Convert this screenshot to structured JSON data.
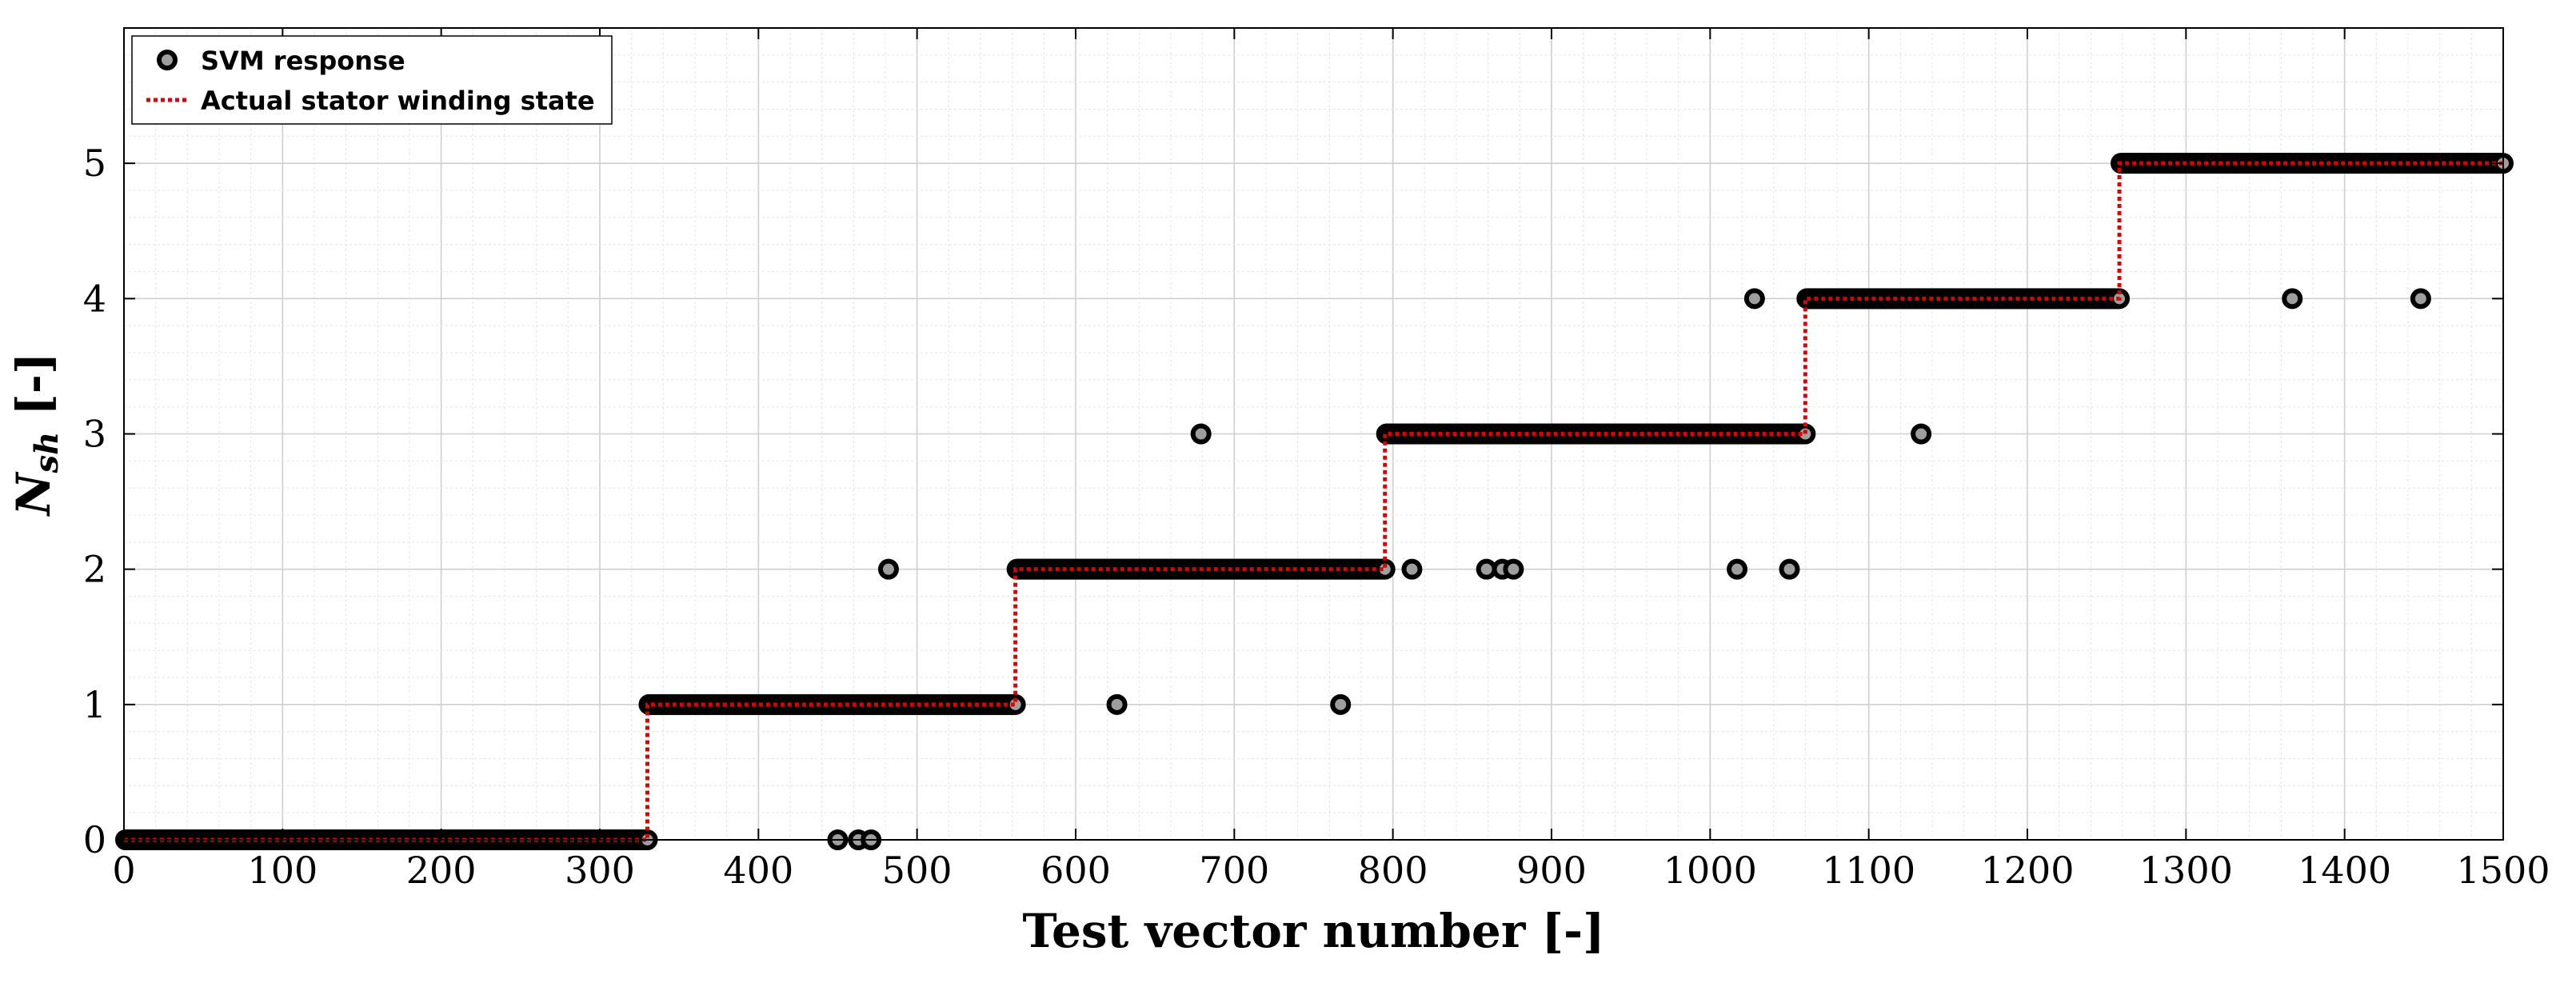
{
  "chart_data": {
    "type": "scatter",
    "title": "",
    "xlabel": "Test vector number [-]",
    "ylabel_main": "N",
    "ylabel_sub": "sh",
    "ylabel_suffix": " [-]",
    "xlim": [
      0,
      1500
    ],
    "ylim": [
      0,
      6
    ],
    "xticks": [
      0,
      100,
      200,
      300,
      400,
      500,
      600,
      700,
      800,
      900,
      1000,
      1100,
      1200,
      1300,
      1400,
      1500
    ],
    "yticks": [
      0,
      1,
      2,
      3,
      4,
      5
    ],
    "grid": "major and minor",
    "legend_position": "top-left",
    "colors": {
      "marker_fill": "#9e9e9e",
      "marker_edge": "#000000",
      "step_line": "#e00000",
      "grid": "#d9d9d9"
    },
    "series": [
      {
        "name": "SVM response",
        "kind": "markers",
        "segments": [
          {
            "x_start": 1,
            "x_end": 330,
            "y": 0
          },
          {
            "x_start": 331,
            "x_end": 562,
            "y": 1
          },
          {
            "x_start": 563,
            "x_end": 795,
            "y": 2
          },
          {
            "x_start": 796,
            "x_end": 1060,
            "y": 3
          },
          {
            "x_start": 1061,
            "x_end": 1258,
            "y": 4
          },
          {
            "x_start": 1259,
            "x_end": 1500,
            "y": 5
          }
        ],
        "outliers": [
          {
            "x": 450,
            "y": 0
          },
          {
            "x": 463,
            "y": 0
          },
          {
            "x": 471,
            "y": 0
          },
          {
            "x": 482,
            "y": 2
          },
          {
            "x": 626,
            "y": 1
          },
          {
            "x": 679,
            "y": 3
          },
          {
            "x": 767,
            "y": 1
          },
          {
            "x": 812,
            "y": 2
          },
          {
            "x": 859,
            "y": 2
          },
          {
            "x": 869,
            "y": 2
          },
          {
            "x": 876,
            "y": 2
          },
          {
            "x": 1017,
            "y": 2
          },
          {
            "x": 1028,
            "y": 4
          },
          {
            "x": 1050,
            "y": 2
          },
          {
            "x": 1133,
            "y": 3
          },
          {
            "x": 1367,
            "y": 4
          },
          {
            "x": 1448,
            "y": 4
          }
        ]
      },
      {
        "name": "Actual stator winding state",
        "kind": "step-line",
        "x": [
          0,
          330,
          330,
          562,
          562,
          795,
          795,
          1060,
          1060,
          1258,
          1258,
          1500
        ],
        "y": [
          0,
          0,
          1,
          1,
          2,
          2,
          3,
          3,
          4,
          4,
          5,
          5
        ]
      }
    ]
  }
}
